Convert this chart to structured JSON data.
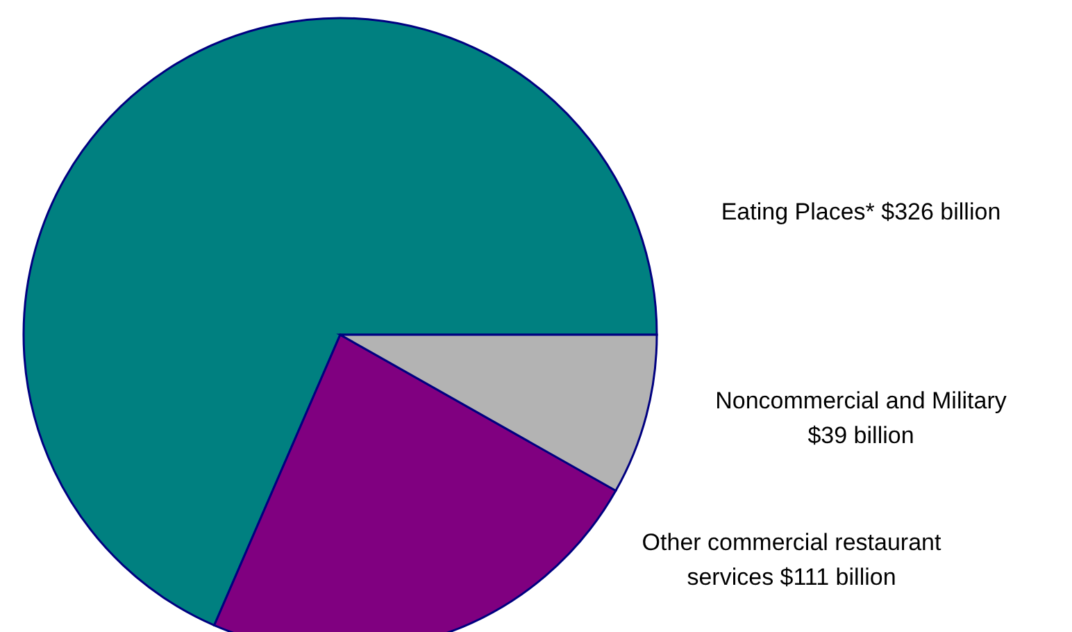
{
  "chart_data": {
    "type": "pie",
    "categories": [
      "Eating Places*",
      "Other commercial restaurant services",
      "Noncommercial and Military"
    ],
    "values": [
      326,
      111,
      39
    ],
    "value_labels": [
      "$326 billion",
      "$111 billion",
      "$39 billion"
    ],
    "colors": [
      "#008080",
      "#800080",
      "#b3b3b3"
    ],
    "legend": false
  }
}
